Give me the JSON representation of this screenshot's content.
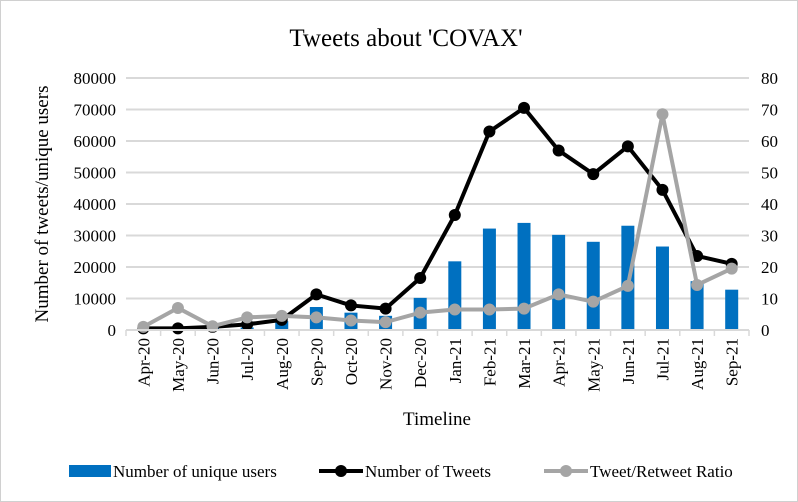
{
  "chart_data": {
    "type": "bar+line",
    "title": "Tweets about 'COVAX'",
    "xlabel": "Timeline",
    "ylabel": "Number of tweets/unique users",
    "ylim": [
      0,
      80000
    ],
    "yticks": [
      "0",
      "10000",
      "20000",
      "30000",
      "40000",
      "50000",
      "60000",
      "70000",
      "80000"
    ],
    "y2lim": [
      0,
      80
    ],
    "y2ticks": [
      "0",
      "10",
      "20",
      "30",
      "40",
      "50",
      "60",
      "70",
      "80"
    ],
    "grid": true,
    "legend_position": "bottom",
    "categories": [
      "Apr-20",
      "May-20",
      "Jun-20",
      "Jul-20",
      "Aug-20",
      "Sep-20",
      "Oct-20",
      "Nov-20",
      "Dec-20",
      "Jan-21",
      "Feb-21",
      "Mar-21",
      "Apr-21",
      "May-21",
      "Jun-21",
      "Jul-21",
      "Aug-21",
      "Sep-21"
    ],
    "series": [
      {
        "name": "Number of unique users",
        "type": "bar",
        "axis": "left",
        "color": "#0070C0",
        "values": [
          200,
          300,
          500,
          800,
          2800,
          7300,
          5500,
          4500,
          10200,
          21800,
          32200,
          34000,
          30200,
          28000,
          33100,
          26500,
          15500,
          12800
        ]
      },
      {
        "name": "Number of Tweets",
        "type": "line",
        "axis": "left",
        "color": "#000000",
        "values": [
          500,
          500,
          1000,
          1800,
          3200,
          11300,
          7800,
          6800,
          16500,
          36500,
          63000,
          70500,
          57000,
          49500,
          58300,
          44500,
          23500,
          21000
        ]
      },
      {
        "name": "Tweet/Retweet Ratio",
        "type": "line",
        "axis": "right",
        "color": "#A5A5A5",
        "values": [
          1,
          7,
          1.2,
          4,
          4.5,
          4,
          3,
          2.5,
          5.5,
          6.5,
          6.5,
          6.8,
          11.3,
          9,
          14,
          68.5,
          14.3,
          19.5
        ]
      }
    ]
  }
}
